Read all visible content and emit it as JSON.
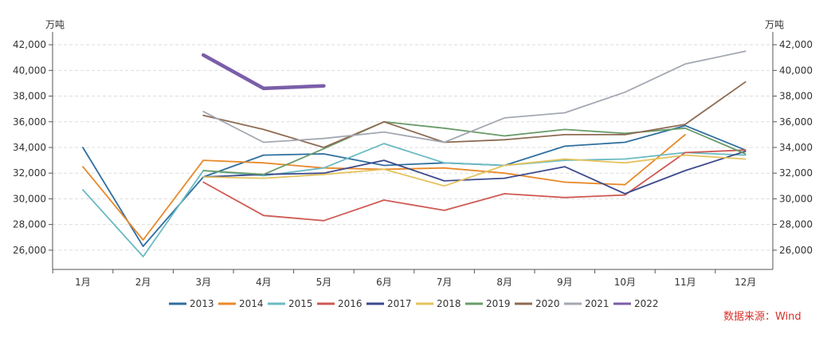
{
  "chart_data": {
    "type": "line",
    "unit_left": "万吨",
    "unit_right": "万吨",
    "categories": [
      "1月",
      "2月",
      "3月",
      "4月",
      "5月",
      "6月",
      "7月",
      "8月",
      "9月",
      "10月",
      "11月",
      "12月"
    ],
    "ylim": [
      24500,
      43000
    ],
    "yticks": [
      26000,
      28000,
      30000,
      32000,
      34000,
      36000,
      38000,
      40000,
      42000
    ],
    "ytick_labels": [
      "26,000",
      "28,000",
      "30,000",
      "32,000",
      "34,000",
      "36,000",
      "38,000",
      "40,000",
      "42,000"
    ],
    "grid": "horizontal-dashed",
    "legend": "bottom",
    "series": [
      {
        "name": "2013",
        "color": "#2f6f9f",
        "values": [
          34000,
          26300,
          31700,
          33400,
          33500,
          32600,
          32800,
          32600,
          34100,
          34400,
          35700,
          33800
        ]
      },
      {
        "name": "2014",
        "color": "#e8892a",
        "values": [
          32500,
          26800,
          33000,
          32800,
          32400,
          32300,
          32400,
          32000,
          31300,
          31100,
          35000,
          null
        ]
      },
      {
        "name": "2015",
        "color": "#6bbac2",
        "values": [
          30700,
          25500,
          32200,
          31800,
          32400,
          34300,
          32800,
          32600,
          33000,
          33100,
          33600,
          33400
        ]
      },
      {
        "name": "2016",
        "color": "#cf5a54",
        "values": [
          null,
          null,
          31300,
          28700,
          28300,
          29900,
          29100,
          30400,
          30100,
          30300,
          33600,
          33800
        ]
      },
      {
        "name": "2017",
        "color": "#3d4a8c",
        "values": [
          null,
          null,
          31700,
          31900,
          32000,
          33000,
          31400,
          31600,
          32500,
          30400,
          32200,
          33700
        ]
      },
      {
        "name": "2018",
        "color": "#e5c35e",
        "values": [
          null,
          null,
          31700,
          31600,
          31900,
          32300,
          31000,
          32600,
          33100,
          32800,
          33400,
          33100
        ]
      },
      {
        "name": "2019",
        "color": "#6a9c6a",
        "values": [
          null,
          null,
          32200,
          31900,
          33900,
          36000,
          35500,
          34900,
          35400,
          35100,
          35500,
          33500
        ]
      },
      {
        "name": "2020",
        "color": "#8e6b53",
        "values": [
          null,
          null,
          36500,
          35400,
          34000,
          36000,
          34400,
          34600,
          35000,
          35000,
          35800,
          39100
        ]
      },
      {
        "name": "2021",
        "color": "#a3a8b2",
        "values": [
          null,
          null,
          36800,
          34400,
          34700,
          35200,
          34400,
          36300,
          36700,
          38300,
          40500,
          41500
        ]
      },
      {
        "name": "2022",
        "color": "#7b5ea8",
        "values": [
          null,
          null,
          41200,
          38600,
          38800,
          null,
          null,
          null,
          null,
          null,
          null,
          null
        ]
      }
    ],
    "source": "数据来源：Wind"
  }
}
